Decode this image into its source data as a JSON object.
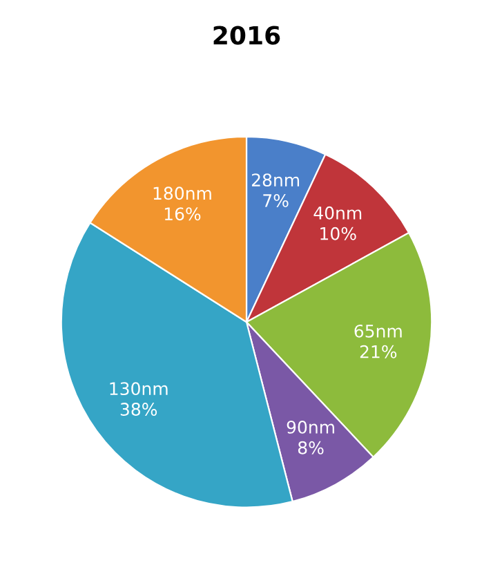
{
  "chart_data": {
    "type": "pie",
    "title": "2016",
    "categories": [
      "28nm",
      "40nm",
      "65nm",
      "90nm",
      "130nm",
      "180nm"
    ],
    "values": [
      7,
      10,
      21,
      8,
      38,
      16
    ],
    "value_labels": [
      "7%",
      "10%",
      "21%",
      "8%",
      "38%",
      "16%"
    ],
    "colors": [
      "#4a7fc9",
      "#c0353a",
      "#8dbb3c",
      "#7a58a6",
      "#35a5c6",
      "#f2952e"
    ],
    "legend": false
  }
}
